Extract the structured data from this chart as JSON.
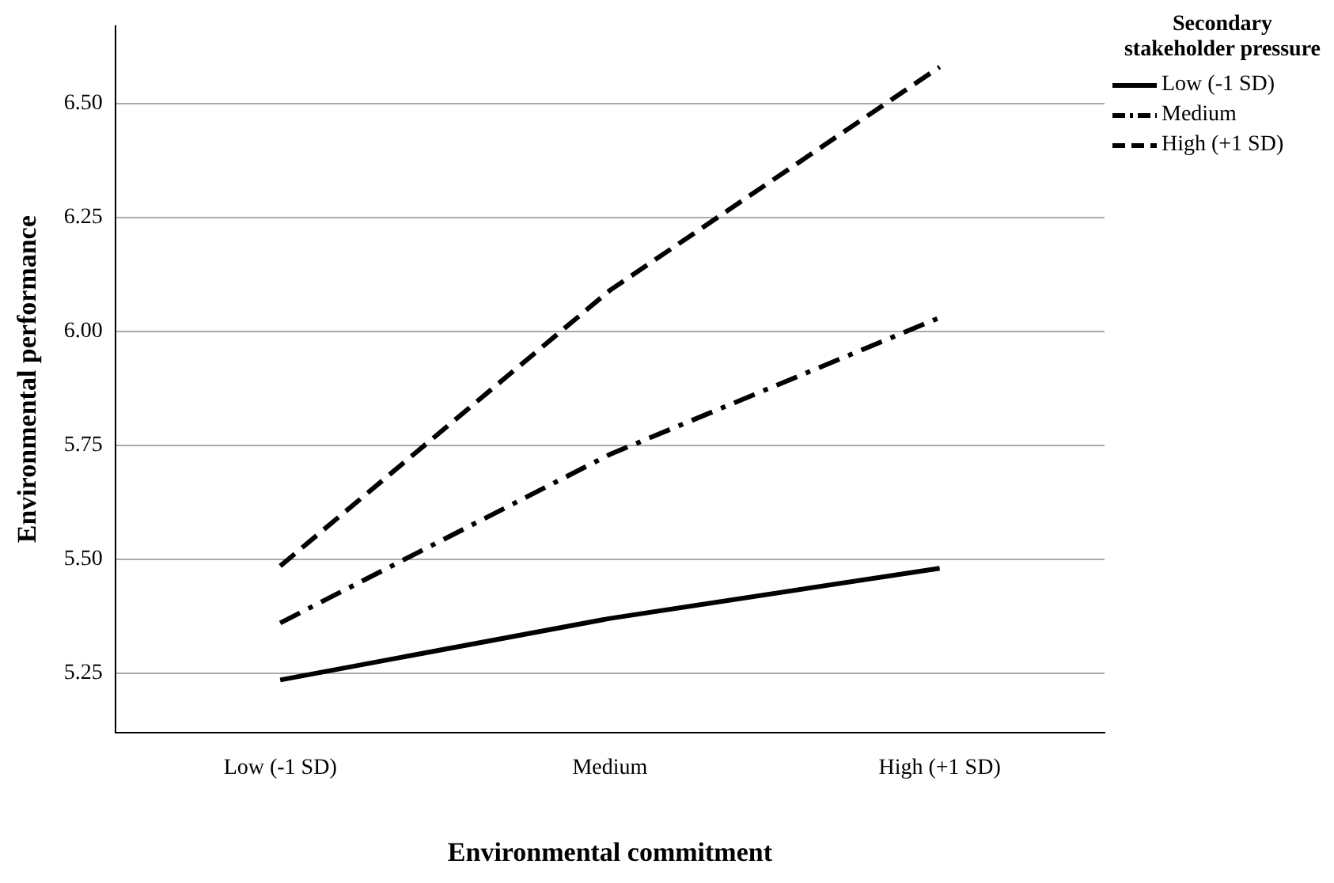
{
  "chart_data": {
    "type": "line",
    "xlabel": "Environmental commitment",
    "ylabel": "Environmental performance",
    "legend_title": "Secondary stakeholder pressure",
    "categories": [
      "Low (-1 SD)",
      "Medium",
      "High (+1 SD)"
    ],
    "series": [
      {
        "name": "Low (-1 SD)",
        "color": "#000000",
        "line_style": "solid",
        "values": [
          5.235,
          5.37,
          5.48
        ]
      },
      {
        "name": "Medium",
        "color": "#000000",
        "line_style": "dashdot",
        "values": [
          5.36,
          5.73,
          6.03
        ]
      },
      {
        "name": "High (+1 SD)",
        "color": "#000000",
        "line_style": "dashed",
        "values": [
          5.485,
          6.09,
          6.58
        ]
      }
    ],
    "ylim": [
      5.12,
      6.67
    ],
    "yticks": [
      5.25,
      {
        "value": 5.5,
        "label": "5.50"
      },
      5.75,
      {
        "value": 6,
        "label": "6.00"
      },
      6.25,
      {
        "value": 6.5,
        "label": "6.50"
      }
    ],
    "grid": "y",
    "legend": "right",
    "marker": "none"
  }
}
